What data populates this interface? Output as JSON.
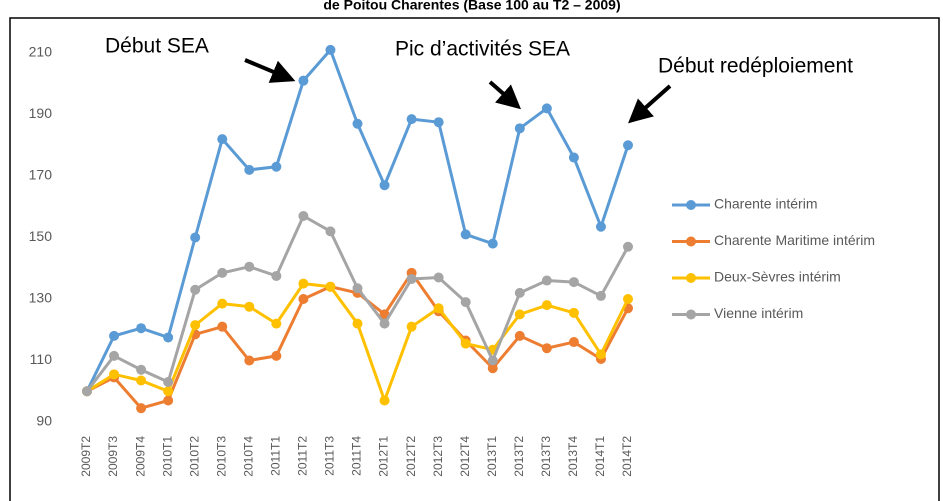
{
  "chart_data": {
    "type": "line",
    "title": "de Poitou Charentes (Base 100 au T2 – 2009)",
    "annotations": [
      "Début SEA",
      "Pic d’activités SEA",
      "Début redéploiement"
    ],
    "categories": [
      "2009T2",
      "2009T3",
      "2009T4",
      "2010T1",
      "2010T2",
      "2010T3",
      "2010T4",
      "2011T1",
      "2011T2",
      "2011T3",
      "2011T4",
      "2012T1",
      "2012T2",
      "2012T3",
      "2012T4",
      "2013T1",
      "2013T2",
      "2013T3",
      "2013T4",
      "2014T1",
      "2014T2"
    ],
    "series": [
      {
        "name": "Charente intérim",
        "color": "#5b9bd5",
        "values": [
          100,
          118,
          120.5,
          117.5,
          150,
          182,
          172,
          173,
          201,
          211,
          187,
          167,
          188.5,
          187.5,
          151,
          148,
          185.5,
          192,
          176,
          153.5,
          180
        ]
      },
      {
        "name": "Charente Maritime intérim",
        "color": "#ed7d31",
        "values": [
          100,
          104.5,
          94.5,
          97,
          118.5,
          121,
          110,
          111.5,
          130,
          134,
          132,
          125,
          138.5,
          126,
          116.5,
          107.5,
          118,
          114,
          116,
          110.5,
          127
        ]
      },
      {
        "name": "Deux-Sèvres intérim",
        "color": "#ffc000",
        "values": [
          100,
          105.5,
          103.5,
          100,
          121.5,
          128.5,
          127.5,
          122,
          135,
          134,
          122,
          97,
          121,
          127,
          115.5,
          113.5,
          125,
          128,
          125.5,
          112,
          130
        ]
      },
      {
        "name": "Vienne intérim",
        "color": "#a5a5a5",
        "values": [
          100,
          111.5,
          107,
          103,
          133,
          138.5,
          140.5,
          137.5,
          157,
          152,
          133.5,
          122,
          136.5,
          137,
          129,
          110,
          132,
          136,
          135.5,
          131,
          147
        ]
      }
    ],
    "ylim": [
      88,
      214
    ],
    "yticks": [
      90,
      110,
      130,
      150,
      170,
      190,
      210
    ],
    "grid": false,
    "legend": "right"
  }
}
